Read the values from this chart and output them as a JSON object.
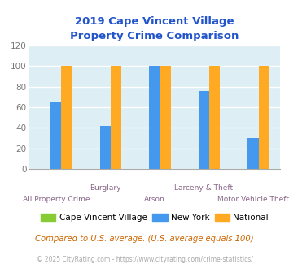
{
  "title_line1": "2019 Cape Vincent Village",
  "title_line2": "Property Crime Comparison",
  "title_color": "#2255cc",
  "series": {
    "Cape Vincent Village": [
      0,
      0,
      0,
      0,
      0
    ],
    "New York": [
      65,
      42,
      100,
      76,
      30
    ],
    "National": [
      100,
      100,
      100,
      100,
      100
    ]
  },
  "colors": {
    "Cape Vincent Village": "#88cc33",
    "New York": "#4499ee",
    "National": "#ffaa22"
  },
  "ylim": [
    0,
    120
  ],
  "yticks": [
    0,
    20,
    40,
    60,
    80,
    100,
    120
  ],
  "plot_bg_color": "#ddeef5",
  "grid_color": "#ffffff",
  "x_labels_top": [
    "",
    "Burglary",
    "",
    "Larceny & Theft",
    ""
  ],
  "x_labels_bottom": [
    "All Property Crime",
    "",
    "Arson",
    "",
    "Motor Vehicle Theft"
  ],
  "x_label_color": "#886688",
  "footnote1": "Compared to U.S. average. (U.S. average equals 100)",
  "footnote1_color": "#cc6600",
  "footnote2": "© 2025 CityRating.com - https://www.cityrating.com/crime-statistics/",
  "footnote2_color": "#aaaaaa",
  "footnote2_link_color": "#4499ee"
}
